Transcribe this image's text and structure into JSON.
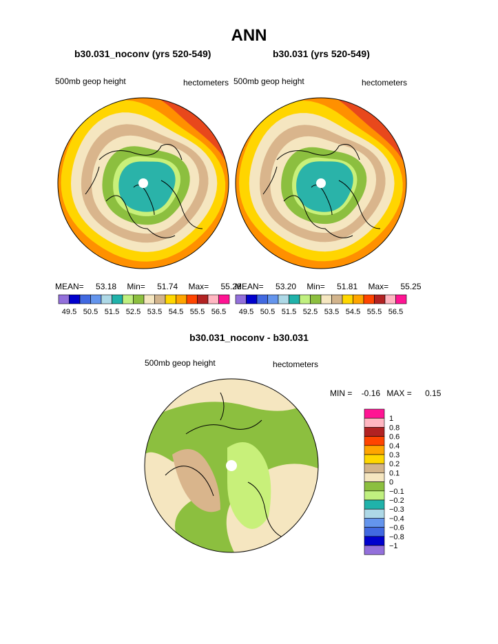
{
  "page": {
    "title": "ANN"
  },
  "chart_data": [
    {
      "type": "heatmap",
      "title": "b30.031_noconv (yrs 520-549)",
      "field_label": "500mb geop height",
      "units": "hectometers",
      "mean_label": "MEAN=",
      "mean": "53.18",
      "min_label": "Min=",
      "min": "51.74",
      "max_label": "Max=",
      "max": "55.28",
      "rings": [
        {
          "level": 55.0,
          "color": "#ff9000"
        },
        {
          "level": 54.5,
          "color": "#ffd500"
        },
        {
          "level": 54.0,
          "color": "#f5e6c0"
        },
        {
          "level": 53.5,
          "color": "#d9b58c"
        },
        {
          "level": 53.0,
          "color": "#f5e6c0"
        },
        {
          "level": 52.5,
          "color": "#8cbf3f"
        },
        {
          "level": 52.0,
          "color": "#c8f07a"
        },
        {
          "level": 51.74,
          "color": "#2ab3a9"
        }
      ]
    },
    {
      "type": "heatmap",
      "title": "b30.031 (yrs 520-549)",
      "field_label": "500mb geop height",
      "units": "hectometers",
      "mean_label": "MEAN=",
      "mean": "53.20",
      "min_label": "Min=",
      "min": "51.81",
      "max_label": "Max=",
      "max": "55.25",
      "rings": [
        {
          "level": 55.0,
          "color": "#ff9000"
        },
        {
          "level": 54.5,
          "color": "#ffd500"
        },
        {
          "level": 54.0,
          "color": "#f5e6c0"
        },
        {
          "level": 53.5,
          "color": "#d9b58c"
        },
        {
          "level": 53.0,
          "color": "#f5e6c0"
        },
        {
          "level": 52.5,
          "color": "#8cbf3f"
        },
        {
          "level": 52.0,
          "color": "#c8f07a"
        },
        {
          "level": 51.81,
          "color": "#2ab3a9"
        }
      ]
    },
    {
      "type": "heatmap",
      "title": "b30.031_noconv - b30.031",
      "field_label": "500mb geop height",
      "units": "hectometers",
      "min_label": "MIN =",
      "min": "-0.16",
      "max_label": "MAX =",
      "max": "0.15"
    }
  ],
  "colorbar_top": {
    "colors": [
      "#9370db",
      "#0000cd",
      "#4169e1",
      "#6495ed",
      "#add8e6",
      "#20b2aa",
      "#c0f080",
      "#8cbf3f",
      "#f5e6c0",
      "#d2b48c",
      "#ffd700",
      "#ffa500",
      "#ff4500",
      "#b22222",
      "#ffb6c1",
      "#ff1493"
    ],
    "labels": [
      "49.5",
      "50.5",
      "51.5",
      "52.5",
      "53.5",
      "54.5",
      "55.5",
      "56.5"
    ]
  },
  "colorbar_diff": {
    "colors": [
      "#ff1493",
      "#ffb6c1",
      "#b22222",
      "#ff4500",
      "#ffa500",
      "#ffd700",
      "#d2b48c",
      "#f5e6c0",
      "#8cbf3f",
      "#c0f080",
      "#20b2aa",
      "#add8e6",
      "#6495ed",
      "#4169e1",
      "#0000cd",
      "#9370db"
    ],
    "labels": [
      "1",
      "0.8",
      "0.6",
      "0.4",
      "0.3",
      "0.2",
      "0.1",
      "0",
      "−0.1",
      "−0.2",
      "−0.3",
      "−0.4",
      "−0.6",
      "−0.8",
      "−1"
    ]
  }
}
